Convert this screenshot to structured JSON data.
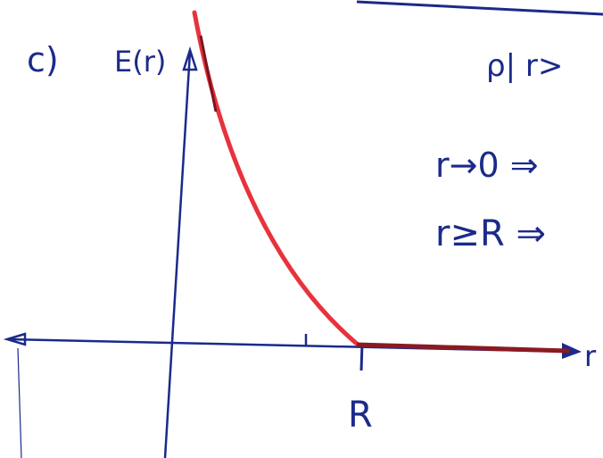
{
  "part_label": "c)",
  "axis": {
    "y_label": "E(r)",
    "x_label": "r",
    "x_mark": "R"
  },
  "notes": [
    "ρ| r>",
    "r→0 ⇒",
    "r≥R ⇒"
  ]
}
